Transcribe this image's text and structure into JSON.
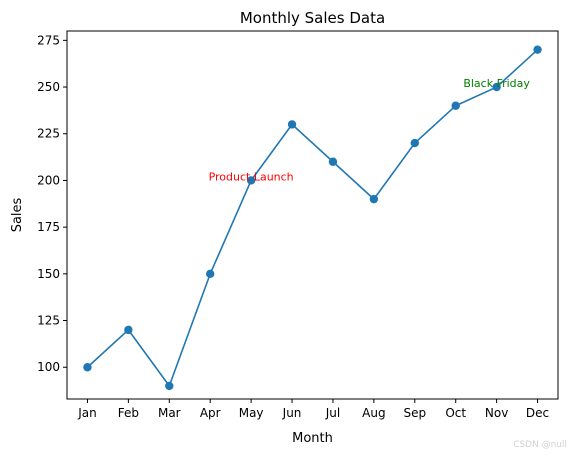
{
  "chart_data": {
    "type": "line",
    "title": "Monthly Sales Data",
    "xlabel": "Month",
    "ylabel": "Sales",
    "categories": [
      "Jan",
      "Feb",
      "Mar",
      "Apr",
      "May",
      "Jun",
      "Jul",
      "Aug",
      "Sep",
      "Oct",
      "Nov",
      "Dec"
    ],
    "series": [
      {
        "values": [
          100,
          120,
          90,
          150,
          200,
          230,
          210,
          190,
          220,
          240,
          250,
          270
        ],
        "color": "#1f77b4",
        "marker": "circle"
      }
    ],
    "ylim": [
      83,
      280
    ],
    "yticks": [
      100,
      125,
      150,
      175,
      200,
      225,
      250,
      275
    ],
    "grid": false,
    "annotations": [
      {
        "text": "Product Launch",
        "category": "May",
        "y": 200,
        "color": "#ff0000"
      },
      {
        "text": "Black Friday",
        "category": "Nov",
        "y": 250,
        "color": "#008000"
      }
    ]
  },
  "watermark": "CSDN @null"
}
